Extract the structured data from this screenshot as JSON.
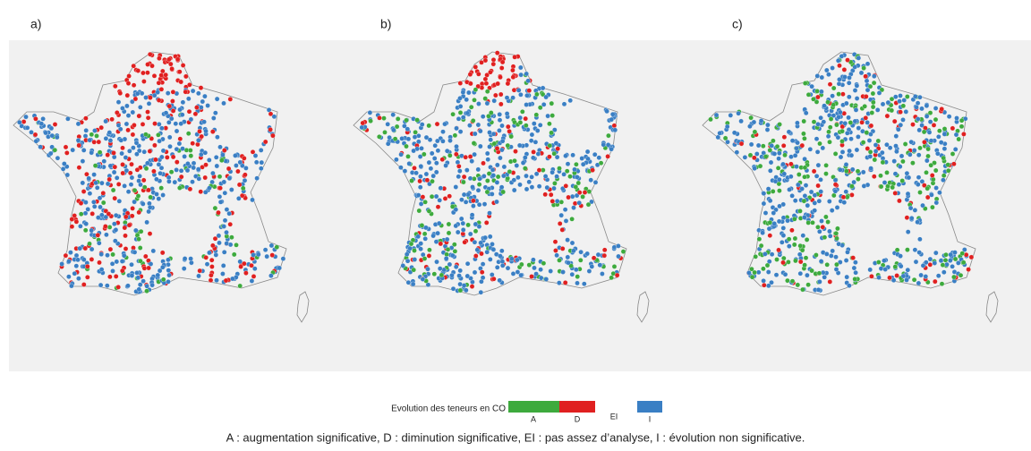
{
  "panels": [
    {
      "label": "a)"
    },
    {
      "label": "b)"
    },
    {
      "label": "c)"
    }
  ],
  "legend": {
    "title": "Evolution des teneurs en CO",
    "items": [
      {
        "code": "A",
        "color": "#3daa3d"
      },
      {
        "code": "D",
        "color": "#e02020"
      },
      {
        "code": "EI"
      },
      {
        "code": "I",
        "color": "#3a7fc4"
      }
    ]
  },
  "caption": "A : augmentation significative, D : diminution significative, EI : pas assez d’analyse, I : évolution non significative."
}
